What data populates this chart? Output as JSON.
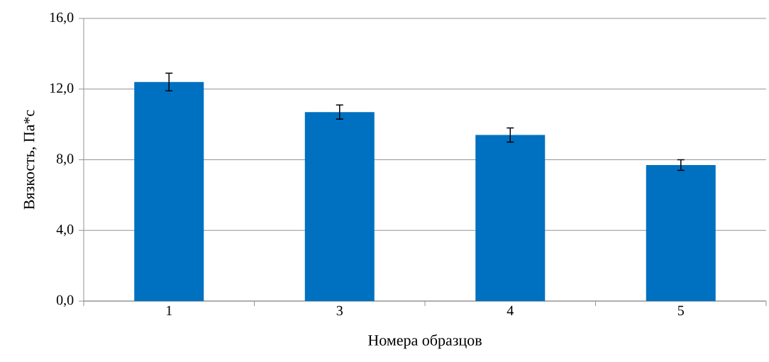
{
  "chart_data": {
    "type": "bar",
    "xlabel": "Номера образцов",
    "ylabel": "Вязкость, Па*с",
    "categories": [
      "1",
      "3",
      "4",
      "5"
    ],
    "values": [
      12.4,
      10.7,
      9.4,
      7.7
    ],
    "errors": [
      0.5,
      0.4,
      0.4,
      0.3
    ],
    "color": "#0070c0",
    "ylim": [
      0,
      16
    ],
    "yticks": [
      {
        "value": 0,
        "label": "0,0"
      },
      {
        "value": 4,
        "label": "4,0"
      },
      {
        "value": 8,
        "label": "8,0"
      },
      {
        "value": 12,
        "label": "12,0"
      },
      {
        "value": 16,
        "label": "16,0"
      }
    ],
    "grid": "y"
  }
}
